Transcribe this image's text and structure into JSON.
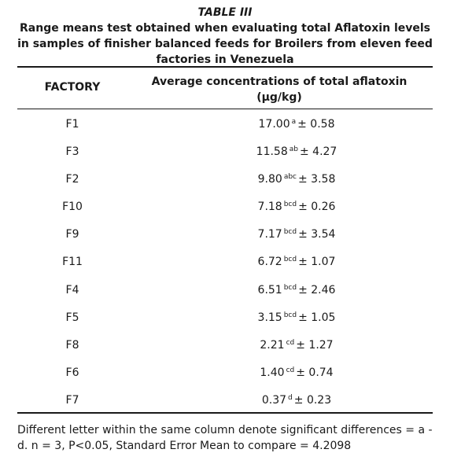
{
  "caption": {
    "label": "TABLE III",
    "title": "Range means test obtained when evaluating total Aflatoxin levels in samples of finisher balanced feeds for Broilers from eleven feed factories in Venezuela"
  },
  "headers": {
    "factory": "FACTORY",
    "average": "Average concentrations of total aflatoxin (µg/kg)"
  },
  "rows": [
    {
      "factory": "F1",
      "mean": "17.00",
      "letters": "a",
      "se": "± 0.58"
    },
    {
      "factory": "F3",
      "mean": "11.58",
      "letters": "ab",
      "se": "± 4.27"
    },
    {
      "factory": "F2",
      "mean": "9.80",
      "letters": "abc",
      "se": "± 3.58"
    },
    {
      "factory": "F10",
      "mean": "7.18",
      "letters": "bcd",
      "se": "± 0.26"
    },
    {
      "factory": "F9",
      "mean": "7.17",
      "letters": "bcd",
      "se": "± 3.54"
    },
    {
      "factory": "F11",
      "mean": "6.72",
      "letters": "bcd",
      "se": "± 1.07"
    },
    {
      "factory": "F4",
      "mean": "6.51",
      "letters": "bcd",
      "se": "± 2.46"
    },
    {
      "factory": "F5",
      "mean": "3.15",
      "letters": "bcd",
      "se": "± 1.05"
    },
    {
      "factory": "F8",
      "mean": "2.21",
      "letters": "cd",
      "se": "± 1.27"
    },
    {
      "factory": "F6",
      "mean": "1.40",
      "letters": "cd",
      "se": "± 0.74"
    },
    {
      "factory": "F7",
      "mean": "0.37",
      "letters": "d",
      "se": "± 0.23"
    }
  ],
  "footnote": "Different letter within the same column denote significant differences = a - d. n = 3, P<0.05, Standard Error Mean to compare = 4.2098"
}
